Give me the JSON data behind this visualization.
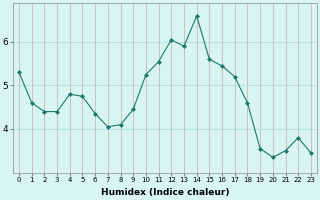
{
  "x": [
    0,
    1,
    2,
    3,
    4,
    5,
    6,
    7,
    8,
    9,
    10,
    11,
    12,
    13,
    14,
    15,
    16,
    17,
    18,
    19,
    20,
    21,
    22,
    23
  ],
  "y": [
    5.3,
    4.6,
    4.4,
    4.4,
    4.8,
    4.75,
    4.35,
    4.05,
    4.1,
    4.45,
    5.25,
    5.55,
    6.05,
    5.9,
    6.6,
    5.6,
    5.45,
    5.2,
    4.6,
    3.55,
    3.35,
    3.5,
    3.8,
    3.45
  ],
  "line_color": "#1a7a6a",
  "marker": "D",
  "marker_size": 2,
  "bg_color": "#d8f5f0",
  "grid_color_v": "#c8aaaa",
  "grid_color_h": "#aadddd",
  "xlabel": "Humidex (Indice chaleur)",
  "yticks": [
    4,
    5,
    6
  ],
  "ylim": [
    3.0,
    6.9
  ],
  "xlim": [
    -0.5,
    23.5
  ],
  "xtick_fontsize": 5.0,
  "ytick_fontsize": 6.5,
  "xlabel_fontsize": 6.5
}
